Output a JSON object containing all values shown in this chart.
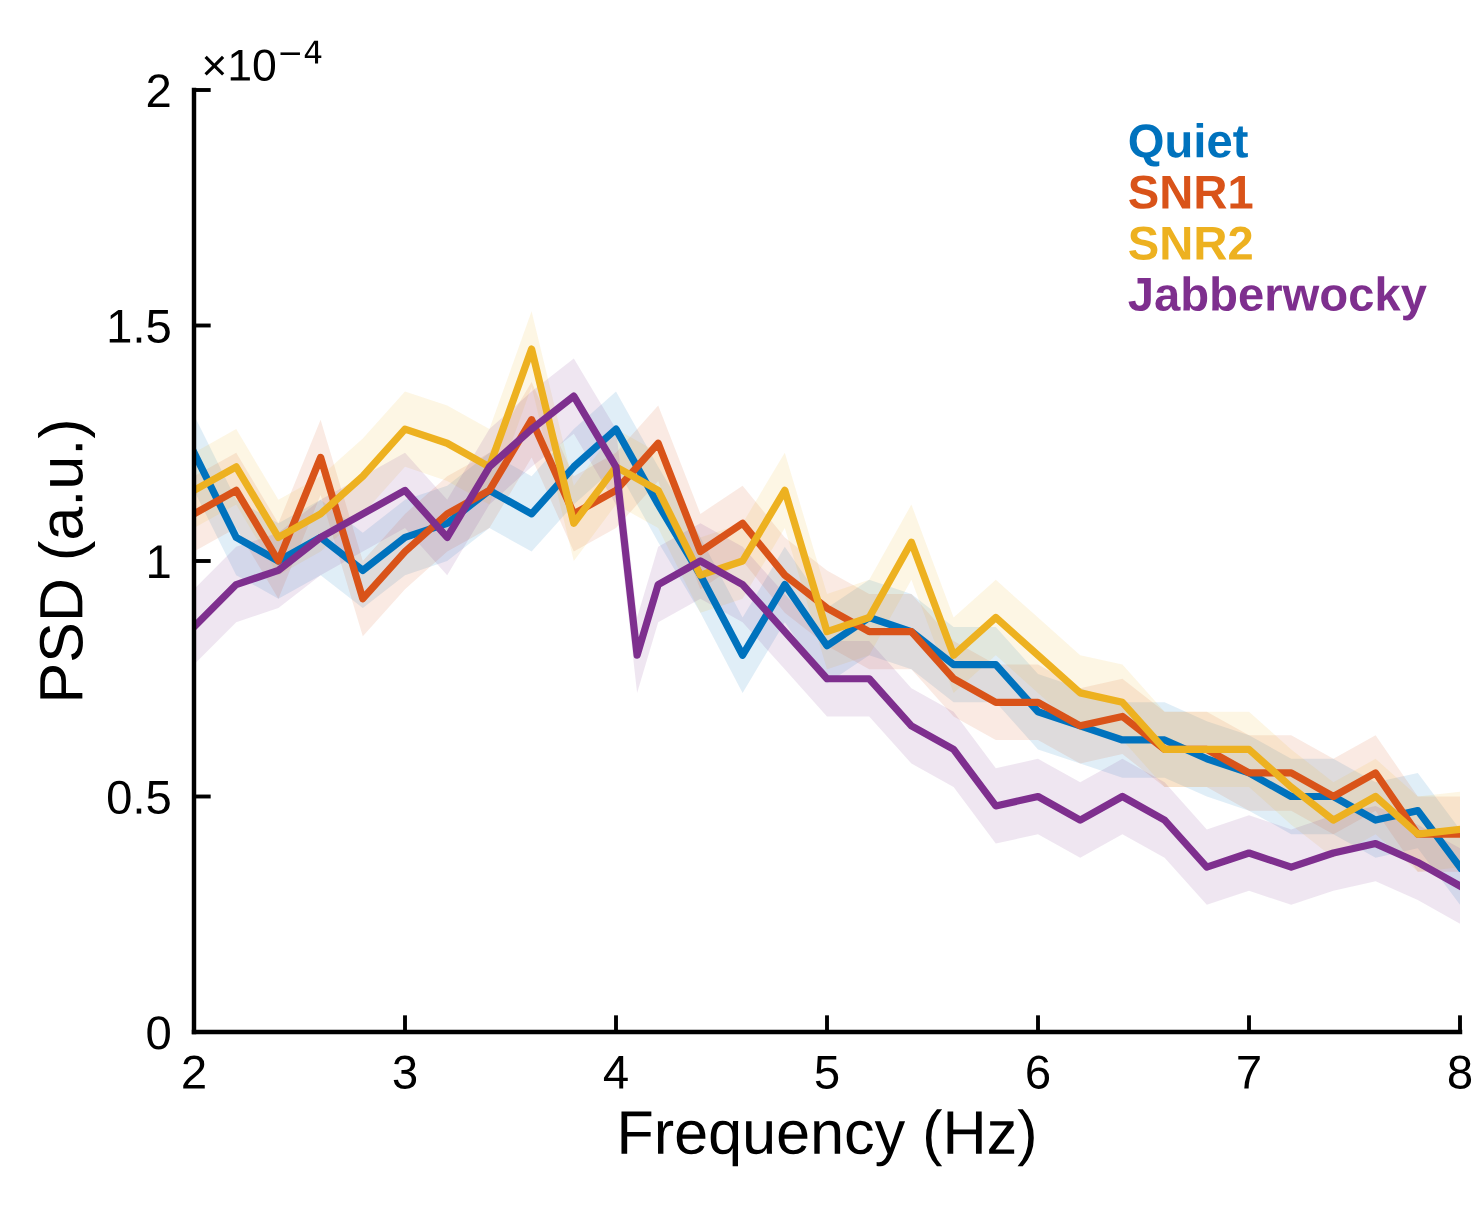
{
  "chart_data": {
    "type": "line",
    "xlabel": "Frequency (Hz)",
    "ylabel": "PSD (a.u.)",
    "xlim": [
      2,
      8
    ],
    "xticks": [
      2,
      3,
      4,
      5,
      6,
      7,
      8
    ],
    "ylim": [
      0,
      2
    ],
    "yticks": [
      0,
      0.5,
      1,
      1.5,
      2
    ],
    "annotations": [
      "×10$^{−4}$"
    ],
    "legend": "top right",
    "grid": false,
    "series": [
      {
        "name": "Quiet",
        "color": "#0072bd",
        "x": [
          2.0,
          2.2,
          2.4,
          2.6,
          2.8,
          3.0,
          3.2,
          3.4,
          3.6,
          3.8,
          4.0,
          4.2,
          4.4,
          4.6,
          4.8,
          5.0,
          5.2,
          5.4,
          5.6,
          5.8,
          6.0,
          6.2,
          6.4,
          6.6,
          6.8,
          7.0,
          7.2,
          7.4,
          7.6,
          7.8,
          8.0
        ],
        "values": [
          1.23,
          1.05,
          1.0,
          1.05,
          0.98,
          1.05,
          1.08,
          1.15,
          1.1,
          1.2,
          1.28,
          1.12,
          0.97,
          0.8,
          0.95,
          0.82,
          0.88,
          0.85,
          0.78,
          0.78,
          0.68,
          0.65,
          0.62,
          0.62,
          0.58,
          0.55,
          0.5,
          0.5,
          0.45,
          0.47,
          0.35
        ],
        "lower": [
          1.15,
          0.97,
          0.92,
          0.97,
          0.9,
          0.97,
          1.0,
          1.07,
          1.02,
          1.12,
          1.2,
          1.04,
          0.89,
          0.72,
          0.87,
          0.74,
          0.8,
          0.77,
          0.7,
          0.7,
          0.6,
          0.57,
          0.54,
          0.54,
          0.5,
          0.47,
          0.42,
          0.42,
          0.37,
          0.39,
          0.27
        ],
        "upper": [
          1.31,
          1.13,
          1.08,
          1.13,
          1.06,
          1.13,
          1.16,
          1.23,
          1.18,
          1.28,
          1.36,
          1.2,
          1.05,
          0.88,
          1.03,
          0.9,
          0.96,
          0.93,
          0.86,
          0.86,
          0.76,
          0.73,
          0.7,
          0.7,
          0.66,
          0.63,
          0.58,
          0.58,
          0.53,
          0.55,
          0.43
        ]
      },
      {
        "name": "SNR1",
        "color": "#d95319",
        "x": [
          2.0,
          2.2,
          2.4,
          2.6,
          2.8,
          3.0,
          3.2,
          3.4,
          3.6,
          3.8,
          4.0,
          4.2,
          4.4,
          4.6,
          4.8,
          5.0,
          5.2,
          5.4,
          5.6,
          5.8,
          6.0,
          6.2,
          6.4,
          6.6,
          6.8,
          7.0,
          7.2,
          7.4,
          7.6,
          7.8,
          8.0
        ],
        "values": [
          1.1,
          1.15,
          1.0,
          1.22,
          0.92,
          1.02,
          1.1,
          1.15,
          1.3,
          1.1,
          1.15,
          1.25,
          1.02,
          1.08,
          0.97,
          0.9,
          0.85,
          0.85,
          0.75,
          0.7,
          0.7,
          0.65,
          0.67,
          0.6,
          0.6,
          0.55,
          0.55,
          0.5,
          0.55,
          0.42,
          0.42
        ],
        "lower": [
          1.02,
          1.07,
          0.92,
          1.14,
          0.84,
          0.94,
          1.02,
          1.07,
          1.22,
          1.02,
          1.07,
          1.17,
          0.94,
          1.0,
          0.89,
          0.82,
          0.77,
          0.77,
          0.67,
          0.62,
          0.62,
          0.57,
          0.59,
          0.52,
          0.52,
          0.47,
          0.47,
          0.42,
          0.47,
          0.34,
          0.34
        ],
        "upper": [
          1.18,
          1.23,
          1.08,
          1.3,
          1.0,
          1.1,
          1.18,
          1.23,
          1.38,
          1.18,
          1.23,
          1.33,
          1.1,
          1.16,
          1.05,
          0.98,
          0.93,
          0.93,
          0.83,
          0.78,
          0.78,
          0.73,
          0.75,
          0.68,
          0.68,
          0.63,
          0.63,
          0.58,
          0.63,
          0.5,
          0.5
        ]
      },
      {
        "name": "SNR2",
        "color": "#edb120",
        "x": [
          2.0,
          2.2,
          2.4,
          2.6,
          2.8,
          3.0,
          3.2,
          3.4,
          3.6,
          3.8,
          4.0,
          4.2,
          4.4,
          4.6,
          4.8,
          5.0,
          5.2,
          5.4,
          5.6,
          5.8,
          6.0,
          6.2,
          6.4,
          6.6,
          6.8,
          7.0,
          7.2,
          7.4,
          7.6,
          7.8,
          8.0
        ],
        "values": [
          1.15,
          1.2,
          1.05,
          1.1,
          1.18,
          1.28,
          1.25,
          1.2,
          1.45,
          1.08,
          1.2,
          1.15,
          0.97,
          1.0,
          1.15,
          0.85,
          0.88,
          1.04,
          0.8,
          0.88,
          0.8,
          0.72,
          0.7,
          0.6,
          0.6,
          0.6,
          0.52,
          0.45,
          0.5,
          0.42,
          0.43
        ],
        "lower": [
          1.07,
          1.12,
          0.97,
          1.02,
          1.1,
          1.2,
          1.17,
          1.12,
          1.37,
          1.0,
          1.12,
          1.07,
          0.89,
          0.92,
          1.07,
          0.77,
          0.8,
          0.96,
          0.72,
          0.8,
          0.72,
          0.64,
          0.62,
          0.52,
          0.52,
          0.52,
          0.44,
          0.37,
          0.42,
          0.34,
          0.35
        ],
        "upper": [
          1.23,
          1.28,
          1.13,
          1.18,
          1.26,
          1.36,
          1.33,
          1.28,
          1.53,
          1.16,
          1.28,
          1.23,
          1.05,
          1.08,
          1.23,
          0.93,
          0.96,
          1.12,
          0.88,
          0.96,
          0.88,
          0.8,
          0.78,
          0.68,
          0.68,
          0.68,
          0.6,
          0.53,
          0.58,
          0.5,
          0.51
        ]
      },
      {
        "name": "Jabberwocky",
        "color": "#7e2f8e",
        "x": [
          2.0,
          2.2,
          2.4,
          2.6,
          2.8,
          3.0,
          3.2,
          3.4,
          3.6,
          3.8,
          4.0,
          4.1,
          4.2,
          4.4,
          4.6,
          4.8,
          5.0,
          5.2,
          5.4,
          5.6,
          5.8,
          6.0,
          6.2,
          6.4,
          6.6,
          6.8,
          7.0,
          7.2,
          7.4,
          7.6,
          7.8,
          8.0
        ],
        "values": [
          0.86,
          0.95,
          0.98,
          1.05,
          1.1,
          1.15,
          1.05,
          1.2,
          1.28,
          1.35,
          1.2,
          0.8,
          0.95,
          1.0,
          0.95,
          0.85,
          0.75,
          0.75,
          0.65,
          0.6,
          0.48,
          0.5,
          0.45,
          0.5,
          0.45,
          0.35,
          0.38,
          0.35,
          0.38,
          0.4,
          0.36,
          0.31
        ],
        "lower": [
          0.78,
          0.87,
          0.9,
          0.97,
          1.02,
          1.07,
          0.97,
          1.12,
          1.2,
          1.27,
          1.12,
          0.72,
          0.87,
          0.92,
          0.87,
          0.77,
          0.67,
          0.67,
          0.57,
          0.52,
          0.4,
          0.42,
          0.37,
          0.42,
          0.37,
          0.27,
          0.3,
          0.27,
          0.3,
          0.32,
          0.28,
          0.23
        ],
        "upper": [
          0.94,
          1.03,
          1.06,
          1.13,
          1.18,
          1.23,
          1.13,
          1.28,
          1.36,
          1.43,
          1.28,
          0.88,
          1.03,
          1.08,
          1.03,
          0.93,
          0.83,
          0.83,
          0.73,
          0.68,
          0.56,
          0.58,
          0.53,
          0.58,
          0.53,
          0.43,
          0.46,
          0.43,
          0.46,
          0.48,
          0.44,
          0.39
        ]
      }
    ]
  }
}
